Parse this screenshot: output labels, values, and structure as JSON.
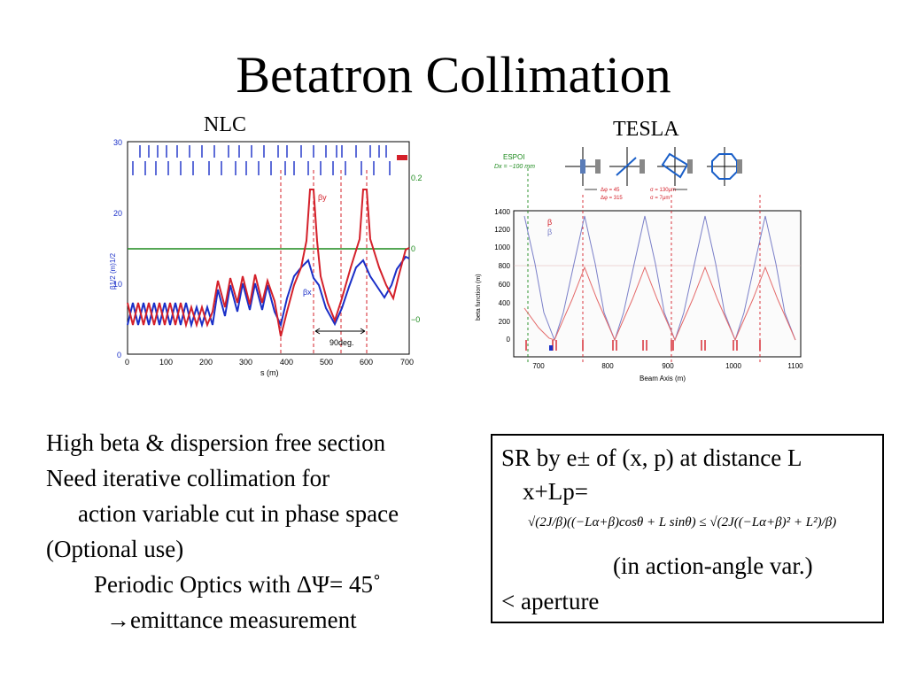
{
  "title": "Betatron Collimation",
  "figures": {
    "nlc": {
      "label": "NLC",
      "x_axis_label": "s (m)",
      "x_ticks": [
        "0",
        "100",
        "200",
        "300",
        "400",
        "500",
        "600",
        "700"
      ],
      "y_ticks": [
        "0",
        "10",
        "20",
        "30"
      ],
      "y_axis_label": "β1/2 (m)1/2",
      "right_ticks": [
        "0.2",
        "0",
        "−0"
      ],
      "beta_y_label": "βy",
      "beta_x_label": "βx",
      "interval_label": "90deg.",
      "colors": {
        "beta_x": "#1a2fc8",
        "beta_y": "#d4202a",
        "dispersion": "#1d8a1d",
        "guide": "#d4202a"
      }
    },
    "tesla": {
      "label": "TESLA",
      "espoi_label": "ESPOI",
      "dx_label": "Dx = −100 mm",
      "phase_labels": [
        "Δφ = 45",
        "Δφ = 315"
      ],
      "sigma_labels": [
        "σ = 130μm",
        "σ = 7μm"
      ],
      "legend": [
        "β",
        "β"
      ],
      "y_axis_label": "beta function (m)",
      "x_axis_label": "Beam Axis (m)",
      "x_ticks": [
        "700",
        "800",
        "900",
        "1000",
        "1100"
      ],
      "y_ticks": [
        "0",
        "200",
        "400",
        "600",
        "800",
        "1000",
        "1200",
        "1400"
      ],
      "colors": {
        "beta_a": "#7a7fc8",
        "beta_b": "#e46a6a",
        "marker": "#d4202a"
      }
    }
  },
  "bullets": [
    "High beta & dispersion free section",
    "Need iterative collimation for",
    "action variable cut in phase space",
    "(Optional use)",
    "Periodic Optics with ΔΨ= 45˚",
    "→emittance measurement"
  ],
  "box": {
    "line1": "SR by e± of (x, p) at distance L",
    "line2": "x+Lp=",
    "formula": "√(2J/β)((−Lα+β)cosθ + L sinθ) ≤ √(2J((−Lα+β)² + L²)/β)",
    "line3": "(in action-angle var.)",
    "line4": "< aperture"
  }
}
